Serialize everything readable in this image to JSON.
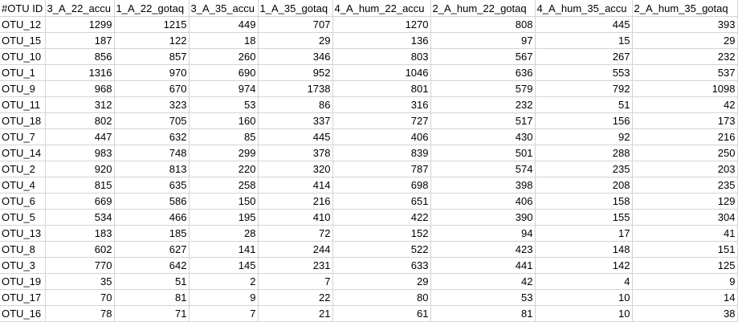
{
  "sheet": {
    "headers": [
      "#OTU ID",
      "3_A_22_accu",
      "1_A_22_gotaq",
      "3_A_35_accu",
      "1_A_35_gotaq",
      "4_A_hum_22_accu",
      "2_A_hum_22_gotaq",
      "4_A_hum_35_accu",
      "2_A_hum_35_gotaq"
    ],
    "rows": [
      [
        "OTU_12",
        "1299",
        "1215",
        "449",
        "707",
        "1270",
        "808",
        "445",
        "393"
      ],
      [
        "OTU_15",
        "187",
        "122",
        "18",
        "29",
        "136",
        "97",
        "15",
        "29"
      ],
      [
        "OTU_10",
        "856",
        "857",
        "260",
        "346",
        "803",
        "567",
        "267",
        "232"
      ],
      [
        "OTU_1",
        "1316",
        "970",
        "690",
        "952",
        "1046",
        "636",
        "553",
        "537"
      ],
      [
        "OTU_9",
        "968",
        "670",
        "974",
        "1738",
        "801",
        "579",
        "792",
        "1098"
      ],
      [
        "OTU_11",
        "312",
        "323",
        "53",
        "86",
        "316",
        "232",
        "51",
        "42"
      ],
      [
        "OTU_18",
        "802",
        "705",
        "160",
        "337",
        "727",
        "517",
        "156",
        "173"
      ],
      [
        "OTU_7",
        "447",
        "632",
        "85",
        "445",
        "406",
        "430",
        "92",
        "216"
      ],
      [
        "OTU_14",
        "983",
        "748",
        "299",
        "378",
        "839",
        "501",
        "288",
        "250"
      ],
      [
        "OTU_2",
        "920",
        "813",
        "220",
        "320",
        "787",
        "574",
        "235",
        "203"
      ],
      [
        "OTU_4",
        "815",
        "635",
        "258",
        "414",
        "698",
        "398",
        "208",
        "235"
      ],
      [
        "OTU_6",
        "669",
        "586",
        "150",
        "216",
        "651",
        "406",
        "158",
        "129"
      ],
      [
        "OTU_5",
        "534",
        "466",
        "195",
        "410",
        "422",
        "390",
        "155",
        "304"
      ],
      [
        "OTU_13",
        "183",
        "185",
        "28",
        "72",
        "152",
        "94",
        "17",
        "41"
      ],
      [
        "OTU_8",
        "602",
        "627",
        "141",
        "244",
        "522",
        "423",
        "148",
        "151"
      ],
      [
        "OTU_3",
        "770",
        "642",
        "145",
        "231",
        "633",
        "441",
        "142",
        "125"
      ],
      [
        "OTU_19",
        "35",
        "51",
        "2",
        "7",
        "29",
        "42",
        "4",
        "9"
      ],
      [
        "OTU_17",
        "70",
        "81",
        "9",
        "22",
        "80",
        "53",
        "10",
        "14"
      ],
      [
        "OTU_16",
        "78",
        "71",
        "7",
        "21",
        "61",
        "81",
        "10",
        "38"
      ]
    ]
  }
}
